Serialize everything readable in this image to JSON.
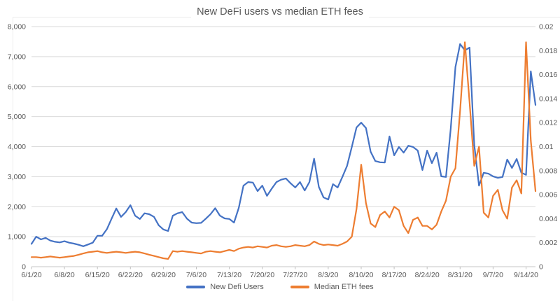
{
  "chart_data": {
    "type": "line",
    "title": "New DeFi users vs median ETH fees",
    "grid": true,
    "legend_position": "bottom",
    "colors": {
      "grid": "#d9d9d9",
      "axis_line": "#c6c6c6",
      "tick": "#bfbfbf",
      "axis_text": "#595959",
      "title_text": "#595959",
      "background": "#ffffff"
    },
    "x_tick_labels": [
      "6/1/20",
      "6/8/20",
      "6/15/20",
      "6/22/20",
      "6/29/20",
      "7/6/20",
      "7/13/20",
      "7/20/20",
      "7/27/20",
      "8/3/20",
      "8/10/20",
      "8/17/20",
      "8/24/20",
      "8/31/20",
      "9/7/20",
      "9/14/20"
    ],
    "x_tick_day_indices": [
      0,
      7,
      14,
      21,
      28,
      35,
      42,
      49,
      56,
      63,
      70,
      77,
      84,
      91,
      98,
      105
    ],
    "left_axis": {
      "min": 0,
      "max": 8000,
      "step": 1000,
      "labels": [
        "0",
        "1,000",
        "2,000",
        "3,000",
        "4,000",
        "5,000",
        "6,000",
        "7,000",
        "8,000"
      ]
    },
    "right_axis": {
      "min": 0,
      "max": 0.02,
      "step": 0.002,
      "labels": [
        "0",
        "0.002",
        "0.004",
        "0.006",
        "0.008",
        "0.01",
        "0.012",
        "0.014",
        "0.016",
        "0.018",
        "0.02"
      ]
    },
    "series": [
      {
        "name": "New Defi Users",
        "color": "#4472C4",
        "axis": "left",
        "values": [
          760,
          1000,
          910,
          960,
          870,
          830,
          810,
          850,
          800,
          770,
          730,
          680,
          740,
          800,
          1030,
          1030,
          1250,
          1600,
          1940,
          1660,
          1820,
          2050,
          1700,
          1590,
          1780,
          1750,
          1660,
          1380,
          1240,
          1190,
          1700,
          1780,
          1820,
          1600,
          1470,
          1450,
          1460,
          1600,
          1750,
          1950,
          1700,
          1610,
          1590,
          1470,
          1960,
          2700,
          2820,
          2800,
          2520,
          2700,
          2360,
          2600,
          2820,
          2900,
          2940,
          2780,
          2640,
          2820,
          2540,
          2820,
          3600,
          2660,
          2310,
          2240,
          2750,
          2640,
          2990,
          3360,
          3990,
          4640,
          4800,
          4620,
          3830,
          3520,
          3480,
          3470,
          4340,
          3710,
          3990,
          3800,
          4030,
          3990,
          3870,
          3220,
          3870,
          3450,
          3800,
          3010,
          2990,
          4600,
          6650,
          7420,
          7210,
          7300,
          4060,
          2700,
          3130,
          3100,
          3010,
          2960,
          2990,
          3570,
          3290,
          3590,
          3130,
          3060,
          6510,
          5390
        ]
      },
      {
        "name": "Median ETH fees",
        "color": "#ED7D31",
        "axis": "right",
        "values": [
          0.0008,
          0.0008,
          0.00075,
          0.0008,
          0.00085,
          0.0008,
          0.00075,
          0.0008,
          0.00085,
          0.0009,
          0.001,
          0.0011,
          0.0012,
          0.00125,
          0.0013,
          0.0012,
          0.00115,
          0.0012,
          0.00125,
          0.0012,
          0.00115,
          0.0012,
          0.00125,
          0.0012,
          0.0011,
          0.001,
          0.0009,
          0.0008,
          0.0007,
          0.00065,
          0.0013,
          0.00125,
          0.0013,
          0.00125,
          0.0012,
          0.00115,
          0.0011,
          0.00125,
          0.0013,
          0.00125,
          0.0012,
          0.0013,
          0.0014,
          0.0013,
          0.0015,
          0.0016,
          0.00165,
          0.0016,
          0.0017,
          0.00165,
          0.0016,
          0.00175,
          0.0018,
          0.0017,
          0.00165,
          0.0017,
          0.0018,
          0.00175,
          0.0017,
          0.0018,
          0.0021,
          0.0019,
          0.0018,
          0.00185,
          0.0018,
          0.00175,
          0.0019,
          0.0021,
          0.0025,
          0.0048,
          0.0085,
          0.0053,
          0.0036,
          0.0033,
          0.0043,
          0.0046,
          0.0041,
          0.005,
          0.0047,
          0.0034,
          0.0028,
          0.0039,
          0.0041,
          0.0034,
          0.0034,
          0.0031,
          0.0035,
          0.0046,
          0.0055,
          0.0075,
          0.0082,
          0.013,
          0.0187,
          0.0137,
          0.0084,
          0.01,
          0.0045,
          0.0041,
          0.0059,
          0.0064,
          0.0047,
          0.004,
          0.0066,
          0.0072,
          0.0061,
          0.0187,
          0.0105,
          0.0063
        ]
      }
    ]
  }
}
